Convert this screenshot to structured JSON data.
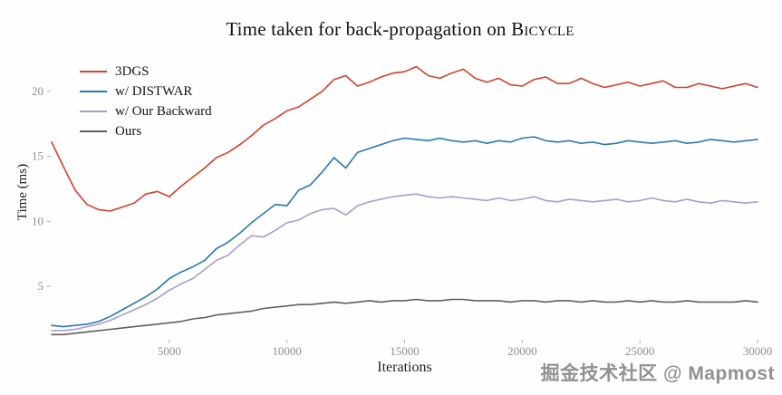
{
  "title_prefix": "Time taken for back-propagation on ",
  "title_scene": "Bicycle",
  "watermark": "掘金技术社区 @ Mapmost",
  "chart_data": {
    "type": "line",
    "title": "Time taken for back-propagation on Bicycle",
    "xlabel": "Iterations",
    "ylabel": "Time (ms)",
    "xlim": [
      0,
      30000
    ],
    "ylim": [
      0.9,
      22.7
    ],
    "x_ticks": [
      5000,
      10000,
      15000,
      20000,
      25000,
      30000
    ],
    "y_ticks": [
      5,
      10,
      15,
      20
    ],
    "grid": false,
    "legend_position": "top-left",
    "x_start": 0,
    "x_step": 500,
    "series": [
      {
        "name": "3DGS",
        "color": "#d5402d",
        "values": [
          16.1,
          14.2,
          12.4,
          11.3,
          10.9,
          10.8,
          11.1,
          11.4,
          12.1,
          12.3,
          11.9,
          12.7,
          13.4,
          14.1,
          14.9,
          15.3,
          15.9,
          16.6,
          17.4,
          17.9,
          18.5,
          18.8,
          19.4,
          20.0,
          20.9,
          21.2,
          20.4,
          20.7,
          21.1,
          21.4,
          21.5,
          21.9,
          21.2,
          21.0,
          21.4,
          21.7,
          21.0,
          20.7,
          21.0,
          20.5,
          20.4,
          20.9,
          21.1,
          20.6,
          20.6,
          21.0,
          20.6,
          20.3,
          20.5,
          20.7,
          20.4,
          20.6,
          20.8,
          20.3,
          20.3,
          20.6,
          20.4,
          20.2,
          20.4,
          20.6,
          20.3
        ]
      },
      {
        "name": "w/ DISTWAR",
        "color": "#2879b5",
        "values": [
          2.0,
          1.9,
          2.0,
          2.1,
          2.3,
          2.7,
          3.2,
          3.7,
          4.2,
          4.8,
          5.6,
          6.1,
          6.5,
          7.0,
          7.9,
          8.4,
          9.1,
          9.9,
          10.6,
          11.3,
          11.2,
          12.4,
          12.8,
          13.8,
          14.9,
          14.1,
          15.3,
          15.6,
          15.9,
          16.2,
          16.4,
          16.3,
          16.2,
          16.4,
          16.2,
          16.1,
          16.2,
          16.0,
          16.2,
          16.1,
          16.4,
          16.5,
          16.2,
          16.1,
          16.2,
          16.0,
          16.1,
          15.9,
          16.0,
          16.2,
          16.1,
          16.0,
          16.1,
          16.2,
          16.0,
          16.1,
          16.3,
          16.2,
          16.1,
          16.2,
          16.3
        ]
      },
      {
        "name": "w/ Our Backward",
        "color": "#a79cd2",
        "values": [
          1.6,
          1.6,
          1.7,
          1.9,
          2.1,
          2.4,
          2.8,
          3.2,
          3.6,
          4.1,
          4.7,
          5.2,
          5.6,
          6.3,
          7.0,
          7.4,
          8.2,
          8.9,
          8.8,
          9.3,
          9.9,
          10.1,
          10.6,
          10.9,
          11.0,
          10.5,
          11.2,
          11.5,
          11.7,
          11.9,
          12.0,
          12.1,
          11.9,
          11.8,
          11.9,
          11.8,
          11.7,
          11.6,
          11.8,
          11.6,
          11.7,
          11.9,
          11.6,
          11.5,
          11.7,
          11.6,
          11.5,
          11.6,
          11.7,
          11.5,
          11.6,
          11.8,
          11.6,
          11.5,
          11.7,
          11.5,
          11.4,
          11.6,
          11.5,
          11.4,
          11.5
        ]
      },
      {
        "name": "Ours",
        "color": "#635f5d",
        "values": [
          1.3,
          1.3,
          1.4,
          1.5,
          1.6,
          1.7,
          1.8,
          1.9,
          2.0,
          2.1,
          2.2,
          2.3,
          2.5,
          2.6,
          2.8,
          2.9,
          3.0,
          3.1,
          3.3,
          3.4,
          3.5,
          3.6,
          3.6,
          3.7,
          3.8,
          3.7,
          3.8,
          3.9,
          3.8,
          3.9,
          3.9,
          4.0,
          3.9,
          3.9,
          4.0,
          4.0,
          3.9,
          3.9,
          3.9,
          3.8,
          3.9,
          3.9,
          3.8,
          3.9,
          3.9,
          3.8,
          3.9,
          3.8,
          3.8,
          3.9,
          3.8,
          3.9,
          3.8,
          3.8,
          3.9,
          3.8,
          3.8,
          3.8,
          3.8,
          3.9,
          3.8
        ]
      }
    ]
  }
}
